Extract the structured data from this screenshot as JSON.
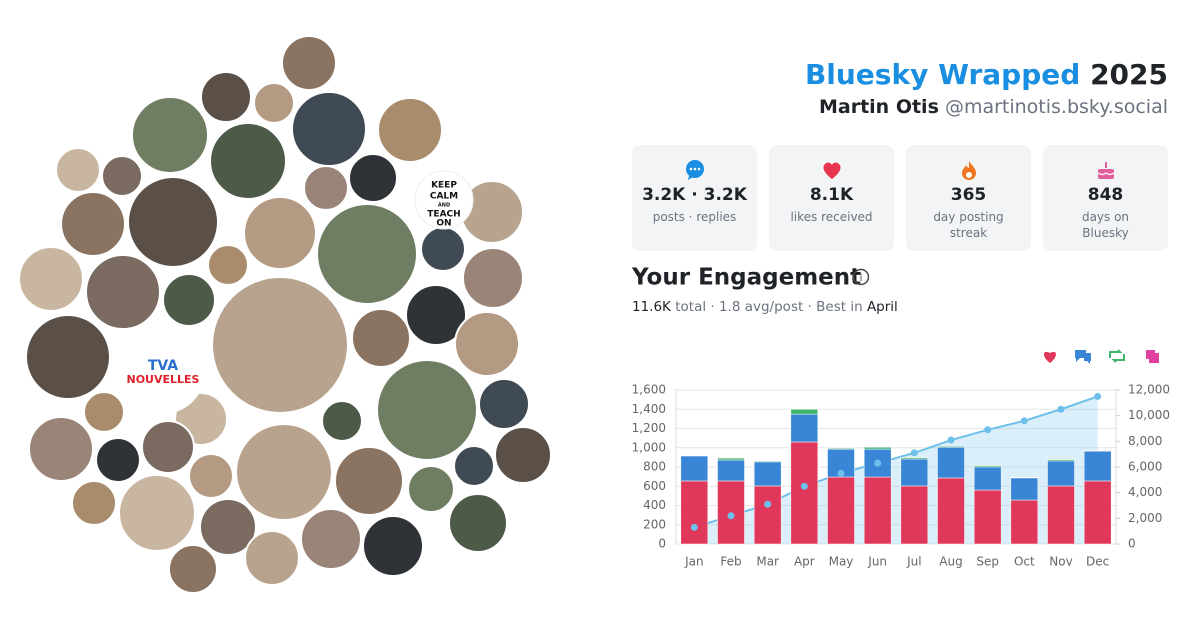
{
  "header": {
    "title": "Bluesky Wrapped",
    "year": "2025",
    "name": "Martin Otis",
    "handle": "@martinotis.bsky.social"
  },
  "avatar_texts": [
    "TVA",
    "NOUVELLES",
    "KEEP",
    "CALM",
    "AND",
    "TEACH",
    "ON"
  ],
  "stats": [
    {
      "value": "3.2K · 3.2K",
      "label": "posts · replies"
    },
    {
      "value": "8.1K",
      "label": "likes received"
    },
    {
      "value": "365",
      "label": "day posting streak"
    },
    {
      "value": "848",
      "label": "days on Bluesky"
    }
  ],
  "engagement": {
    "title": "Your Engagement",
    "total": "11.6K",
    "total_label": "total",
    "avg": "1.8 avg/post",
    "best_label": "Best in",
    "best": "April"
  },
  "chart_data": {
    "type": "bar",
    "categories": [
      "Jan",
      "Feb",
      "Mar",
      "Apr",
      "May",
      "Jun",
      "Jul",
      "Aug",
      "Sep",
      "Oct",
      "Nov",
      "Dec"
    ],
    "series": [
      {
        "color": "#e0385a",
        "values": [
          655,
          655,
          603,
          1060,
          696,
          696,
          603,
          686,
          561,
          457,
          603,
          655
        ]
      },
      {
        "color": "#3a86d6",
        "values": [
          260,
          218,
          250,
          290,
          290,
          290,
          280,
          320,
          240,
          230,
          260,
          310
        ]
      },
      {
        "color": "#3fb56b",
        "values": [
          5,
          20,
          10,
          50,
          10,
          20,
          15,
          10,
          15,
          5,
          15,
          5
        ]
      },
      {
        "color": "#e0409e",
        "values": [
          2,
          2,
          2,
          5,
          2,
          2,
          2,
          2,
          2,
          2,
          2,
          2
        ]
      },
      {
        "type": "line",
        "axis": "y2",
        "color": "#6cc0ea",
        "values": [
          1300,
          2200,
          3100,
          4500,
          5500,
          6300,
          7100,
          8100,
          8900,
          9600,
          10500,
          11500
        ]
      }
    ],
    "ylim": [
      0,
      1600
    ],
    "yticks": [
      0,
      200,
      400,
      600,
      800,
      {
        "value": 1000,
        "label": "1,000"
      },
      {
        "value": 1200,
        "label": "1,200"
      },
      {
        "value": 1400,
        "label": "1,400"
      },
      {
        "value": 1600,
        "label": "1,600"
      }
    ],
    "y2lim": [
      0,
      12000
    ],
    "y2ticks": [
      0,
      {
        "value": 2000,
        "label": "2,000"
      },
      {
        "value": 4000,
        "label": "4,000"
      },
      {
        "value": 6000,
        "label": "6,000"
      },
      {
        "value": 8000,
        "label": "8,000"
      },
      {
        "value": 10000,
        "label": "10,000"
      },
      {
        "value": 12000,
        "label": "12,000"
      }
    ],
    "grid": true
  }
}
